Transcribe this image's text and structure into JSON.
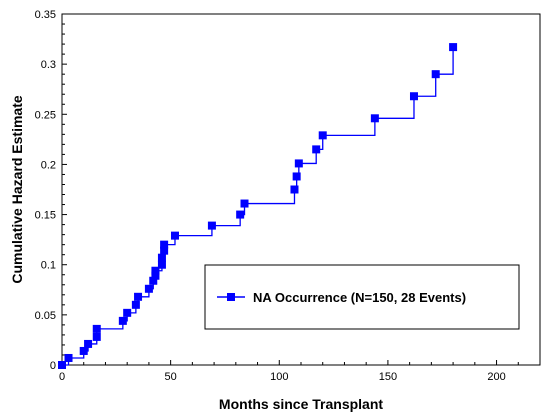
{
  "chart_data": {
    "type": "line",
    "step": true,
    "title": "",
    "xlabel": "Months since Transplant",
    "ylabel": "Cumulative Hazard Estimate",
    "xlim": [
      0,
      220
    ],
    "ylim": [
      0,
      0.35
    ],
    "x_ticks": [
      0,
      50,
      100,
      150,
      200
    ],
    "y_ticks": [
      0,
      0.05,
      0.1,
      0.15,
      0.2,
      0.25,
      0.3,
      0.35
    ],
    "x_tick_labels": [
      "0",
      "50",
      "100",
      "150",
      "200"
    ],
    "y_tick_labels": [
      "0",
      "0.05",
      "0.1",
      "0.15",
      "0.2",
      "0.25",
      "0.3",
      "0.35"
    ],
    "grid": false,
    "legend_position": "lower-right",
    "series": [
      {
        "name": "NA Occurrence (N=150, 28 Events)",
        "color": "#0000ff",
        "marker": "square",
        "points": [
          [
            0,
            0.0
          ],
          [
            3,
            0.007
          ],
          [
            10,
            0.014
          ],
          [
            12,
            0.021
          ],
          [
            16,
            0.028
          ],
          [
            16,
            0.036
          ],
          [
            28,
            0.044
          ],
          [
            30,
            0.052
          ],
          [
            34,
            0.06
          ],
          [
            35,
            0.068
          ],
          [
            40,
            0.076
          ],
          [
            42,
            0.084
          ],
          [
            43,
            0.089
          ],
          [
            43,
            0.094
          ],
          [
            46,
            0.1
          ],
          [
            46,
            0.107
          ],
          [
            47,
            0.114
          ],
          [
            47,
            0.12
          ],
          [
            52,
            0.129
          ],
          [
            69,
            0.139
          ],
          [
            82,
            0.15
          ],
          [
            84,
            0.161
          ],
          [
            107,
            0.175
          ],
          [
            108,
            0.188
          ],
          [
            109,
            0.201
          ],
          [
            117,
            0.215
          ],
          [
            120,
            0.229
          ],
          [
            144,
            0.246
          ],
          [
            162,
            0.268
          ],
          [
            172,
            0.29
          ],
          [
            180,
            0.317
          ]
        ]
      }
    ]
  }
}
